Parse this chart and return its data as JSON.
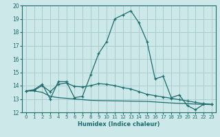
{
  "xlabel": "Humidex (Indice chaleur)",
  "background_color": "#cde8e8",
  "grid_color": "#aacccc",
  "line_color": "#1a6b6b",
  "xlim": [
    -0.5,
    23.5
  ],
  "ylim": [
    12,
    20
  ],
  "yticks": [
    12,
    13,
    14,
    15,
    16,
    17,
    18,
    19,
    20
  ],
  "xticks": [
    0,
    1,
    2,
    3,
    4,
    5,
    6,
    7,
    8,
    9,
    10,
    11,
    12,
    13,
    14,
    15,
    16,
    17,
    18,
    19,
    20,
    21,
    22,
    23
  ],
  "curve1_x": [
    0,
    1,
    2,
    3,
    4,
    5,
    6,
    7,
    8,
    9,
    10,
    11,
    12,
    13,
    14,
    15,
    16,
    17,
    18,
    19,
    20,
    21,
    22,
    23
  ],
  "curve1_y": [
    13.6,
    13.7,
    14.1,
    13.0,
    14.3,
    14.3,
    13.1,
    13.2,
    14.8,
    16.4,
    17.3,
    19.0,
    19.3,
    19.6,
    18.7,
    17.3,
    14.5,
    14.7,
    13.1,
    13.3,
    12.5,
    12.2,
    12.6,
    12.6
  ],
  "curve2_x": [
    0,
    1,
    2,
    3,
    4,
    5,
    6,
    7,
    8,
    9,
    10,
    11,
    12,
    13,
    14,
    15,
    16,
    17,
    18,
    19,
    20,
    21,
    22,
    23
  ],
  "curve2_y": [
    13.6,
    13.65,
    14.0,
    13.55,
    14.1,
    14.2,
    13.95,
    13.9,
    14.0,
    14.15,
    14.1,
    14.0,
    13.85,
    13.75,
    13.55,
    13.35,
    13.25,
    13.15,
    13.05,
    12.95,
    12.85,
    12.75,
    12.65,
    12.6
  ],
  "curve3_x": [
    0,
    1,
    2,
    3,
    4,
    5,
    6,
    7,
    8,
    9,
    10,
    11,
    12,
    13,
    14,
    15,
    16,
    17,
    18,
    19,
    20,
    21,
    22,
    23
  ],
  "curve3_y": [
    13.6,
    13.6,
    13.5,
    13.2,
    13.1,
    13.05,
    13.0,
    12.95,
    12.9,
    12.88,
    12.87,
    12.86,
    12.85,
    12.84,
    12.83,
    12.82,
    12.78,
    12.74,
    12.7,
    12.67,
    12.65,
    12.62,
    12.6,
    12.58
  ]
}
